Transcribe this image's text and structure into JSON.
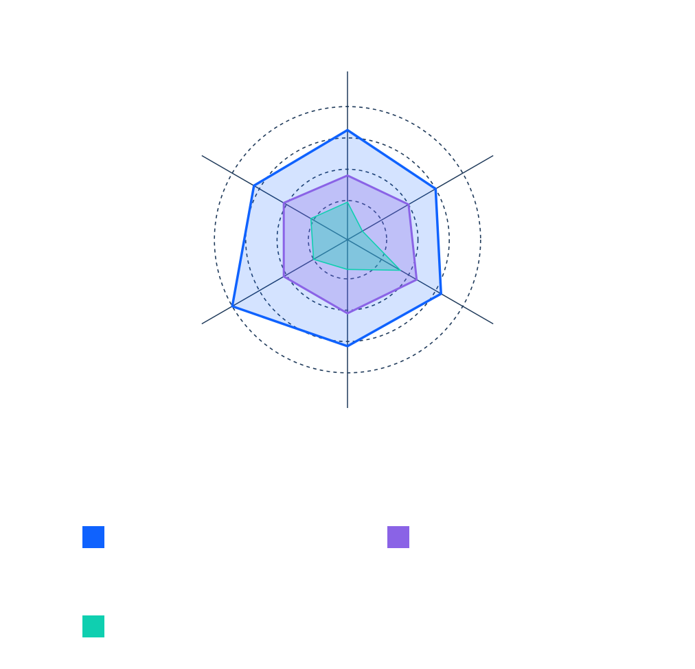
{
  "chart_data": {
    "type": "radar",
    "axes": [
      "",
      "",
      "",
      "",
      "",
      ""
    ],
    "range": [
      0,
      4
    ],
    "rings": [
      1.25,
      2.25,
      3.25,
      4.25
    ],
    "grid": true,
    "legend_position": "bottom",
    "series": [
      {
        "color": "#0f62fe",
        "values": [
          3.5,
          3.25,
          3.45,
          3.4,
          4.25,
          3.45
        ]
      },
      {
        "color": "#8a63e6",
        "values": [
          2.05,
          2.25,
          2.55,
          2.35,
          2.35,
          2.35
        ]
      },
      {
        "color": "#0fcfb0",
        "values": [
          1.2,
          0.55,
          1.95,
          0.95,
          1.25,
          1.35
        ]
      }
    ]
  },
  "legend": {
    "items": [
      {
        "label": "",
        "color": "#0f62fe"
      },
      {
        "label": "",
        "color": "#8a63e6"
      },
      {
        "label": "",
        "color": "#0fcfb0"
      }
    ]
  }
}
